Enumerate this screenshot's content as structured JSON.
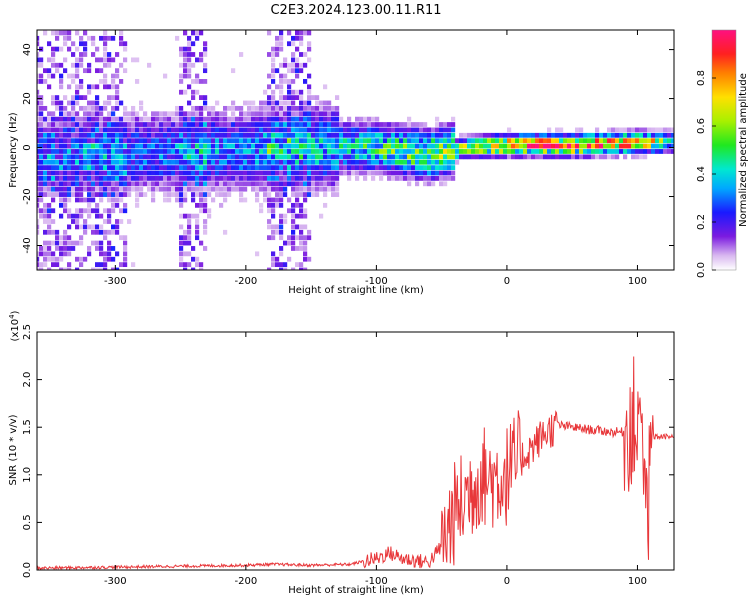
{
  "title": "C2E3.2024.123.00.11.R11",
  "colorbar": {
    "label": "Normalized spectral amplitude",
    "ticks": [
      "0.0",
      "0.2",
      "0.4",
      "0.6",
      "0.8"
    ],
    "tick_values": [
      0.0,
      0.2,
      0.4,
      0.6,
      0.8
    ],
    "range": [
      0,
      1
    ]
  },
  "chart_data": [
    {
      "type": "heatmap",
      "title": "",
      "xlabel": "Height of straight line (km)",
      "ylabel": "Frequency (Hz)",
      "xlim": [
        -360,
        128
      ],
      "ylim": [
        -50,
        48
      ],
      "xticks": [
        -300,
        -200,
        -100,
        0,
        100
      ],
      "xtick_labels": [
        "-300",
        "-200",
        "-100",
        "0",
        "100"
      ],
      "yticks": [
        -40,
        -20,
        0,
        20,
        40
      ],
      "ytick_labels": [
        "-40",
        "-20",
        "0",
        "20",
        "40"
      ],
      "ridge": {
        "description_points_x": [
          -360,
          -300,
          -200,
          -150,
          -100,
          -60,
          -30,
          0,
          50,
          100,
          128
        ],
        "center_freq_hz": [
          -4,
          -3,
          -1,
          0,
          0,
          -3,
          0,
          1,
          1,
          2,
          2
        ],
        "peak_amplitude": [
          0.2,
          0.25,
          0.3,
          0.35,
          0.45,
          0.55,
          0.6,
          0.85,
          0.9,
          0.8,
          0.4
        ]
      },
      "noise_bands_x": [
        [
          -360,
          -290
        ],
        [
          -250,
          -230
        ],
        [
          -185,
          -150
        ]
      ]
    },
    {
      "type": "line",
      "title": "",
      "xlabel": "Height of straight line (km)",
      "ylabel": "SNR (10 * v/v)",
      "y_multiplier_label": "(x10",
      "y_multiplier_exp": "4",
      "xlim": [
        -360,
        128
      ],
      "ylim": [
        0,
        2.5
      ],
      "xticks": [
        -300,
        -200,
        -100,
        0,
        100
      ],
      "xtick_labels": [
        "-300",
        "-200",
        "-100",
        "0",
        "100"
      ],
      "yticks": [
        0,
        0.5,
        1.0,
        1.5,
        2.0,
        2.5
      ],
      "ytick_labels": [
        "0.0",
        "0.5",
        "1.0",
        "1.5",
        "2.0",
        "2.5"
      ],
      "series": [
        {
          "color": "#e8373a",
          "x": [
            -360,
            -300,
            -250,
            -200,
            -180,
            -150,
            -120,
            -100,
            -90,
            -80,
            -60,
            -50,
            -40,
            -30,
            -20,
            -10,
            0,
            10,
            20,
            30,
            40,
            60,
            80,
            90,
            100,
            105,
            108,
            112,
            128
          ],
          "y": [
            0.02,
            0.03,
            0.04,
            0.05,
            0.06,
            0.05,
            0.06,
            0.12,
            0.18,
            0.12,
            0.08,
            0.25,
            0.6,
            0.8,
            1.0,
            0.95,
            1.0,
            1.15,
            1.3,
            1.45,
            1.52,
            1.48,
            1.45,
            1.45,
            1.6,
            1.0,
            0.5,
            1.4,
            1.4
          ]
        }
      ]
    }
  ]
}
